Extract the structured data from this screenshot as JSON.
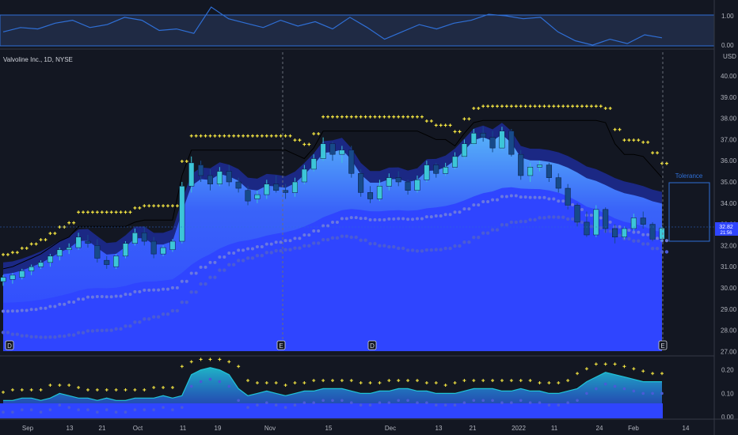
{
  "symbol_title": "Valvoline Inc., 1D, NYSE",
  "currency": "USD",
  "tolerance_label": "Tolerance",
  "last_price": "32.82",
  "countdown": "21:56",
  "colors": {
    "background": "#131722",
    "ribbon_fill": "#2f45ff",
    "band_dots": "#4a5bd6",
    "sar_dots": "#f5e642",
    "candle_up": "#3dc6d8",
    "candle_down": "#174a8a",
    "top_line": "#2f6fd6"
  },
  "x_ticks": [
    "Sep",
    "13",
    "21",
    "Oct",
    "11",
    "19",
    "Nov",
    "15",
    "Dec",
    "13",
    "21",
    "2022",
    "11",
    "24",
    "Feb",
    "14"
  ],
  "event_markers": [
    "D",
    "E",
    "D",
    "E"
  ],
  "chart_data": [
    {
      "type": "line",
      "panel": "top-oscillator",
      "yticks": [
        "1.00",
        "0.00"
      ],
      "ylim": [
        0,
        1
      ],
      "values": [
        0.45,
        0.6,
        0.55,
        0.75,
        0.85,
        0.6,
        0.7,
        0.95,
        0.85,
        0.5,
        0.55,
        0.4,
        1.3,
        0.9,
        0.75,
        0.6,
        0.85,
        0.65,
        0.8,
        0.55,
        0.95,
        0.6,
        0.2,
        0.45,
        0.7,
        0.55,
        0.75,
        0.85,
        1.05,
        1.0,
        0.9,
        0.95,
        0.45,
        0.15,
        0.0,
        0.2,
        0.05,
        0.35,
        0.25
      ]
    },
    {
      "type": "candlestick",
      "panel": "price",
      "yticks": [
        "40.00",
        "39.00",
        "38.00",
        "37.00",
        "36.00",
        "35.00",
        "34.00",
        "33.00",
        "32.00",
        "31.00",
        "30.00",
        "29.00",
        "28.00",
        "27.00"
      ],
      "ylim": [
        27,
        40.5
      ],
      "candles": [
        [
          30.3,
          30.6,
          30.1,
          30.5
        ],
        [
          30.4,
          30.7,
          30.2,
          30.6
        ],
        [
          30.5,
          30.9,
          30.4,
          30.8
        ],
        [
          30.8,
          31.1,
          30.6,
          31.0
        ],
        [
          31.0,
          31.3,
          30.9,
          31.2
        ],
        [
          31.2,
          31.6,
          31.0,
          31.5
        ],
        [
          31.5,
          31.9,
          31.3,
          31.8
        ],
        [
          31.8,
          32.1,
          31.6,
          31.9
        ],
        [
          31.9,
          32.6,
          31.8,
          32.4
        ],
        [
          32.2,
          32.5,
          31.9,
          32.1
        ],
        [
          32.0,
          32.3,
          31.2,
          31.4
        ],
        [
          31.3,
          31.5,
          30.9,
          31.1
        ],
        [
          31.0,
          31.6,
          30.9,
          31.5
        ],
        [
          31.5,
          32.2,
          31.4,
          32.1
        ],
        [
          32.1,
          32.8,
          32.0,
          32.6
        ],
        [
          32.6,
          32.9,
          32.0,
          32.2
        ],
        [
          32.2,
          32.4,
          31.4,
          31.6
        ],
        [
          31.6,
          32.0,
          31.5,
          31.9
        ],
        [
          31.8,
          32.3,
          31.7,
          32.2
        ],
        [
          32.2,
          35.0,
          32.1,
          34.8
        ],
        [
          34.8,
          36.2,
          34.5,
          35.9
        ],
        [
          35.8,
          36.0,
          35.0,
          35.3
        ],
        [
          35.3,
          35.6,
          34.6,
          34.9
        ],
        [
          34.9,
          35.7,
          34.8,
          35.5
        ],
        [
          35.5,
          35.8,
          34.8,
          35.0
        ],
        [
          35.0,
          35.2,
          34.5,
          34.7
        ],
        [
          34.6,
          34.8,
          33.9,
          34.1
        ],
        [
          34.2,
          34.6,
          34.0,
          34.4
        ],
        [
          34.4,
          35.1,
          34.2,
          34.9
        ],
        [
          34.9,
          35.3,
          34.5,
          34.6
        ],
        [
          34.6,
          34.9,
          34.2,
          34.5
        ],
        [
          34.5,
          35.2,
          34.3,
          35.0
        ],
        [
          35.0,
          35.8,
          34.9,
          35.6
        ],
        [
          35.6,
          36.3,
          35.5,
          36.1
        ],
        [
          36.1,
          37.1,
          36.0,
          36.8
        ],
        [
          36.8,
          36.9,
          36.0,
          36.3
        ],
        [
          36.3,
          36.7,
          35.9,
          36.5
        ],
        [
          36.5,
          36.7,
          35.2,
          35.4
        ],
        [
          35.4,
          35.6,
          34.3,
          34.5
        ],
        [
          34.5,
          34.8,
          34.0,
          34.2
        ],
        [
          34.2,
          35.1,
          34.1,
          34.8
        ],
        [
          34.8,
          35.4,
          34.6,
          35.2
        ],
        [
          35.2,
          35.5,
          34.8,
          35.0
        ],
        [
          35.0,
          35.1,
          34.4,
          34.6
        ],
        [
          34.6,
          35.3,
          34.5,
          35.1
        ],
        [
          35.1,
          36.0,
          35.0,
          35.8
        ],
        [
          35.8,
          35.9,
          35.2,
          35.4
        ],
        [
          35.4,
          35.9,
          35.3,
          35.7
        ],
        [
          35.7,
          36.4,
          35.6,
          36.2
        ],
        [
          36.2,
          37.0,
          36.1,
          36.8
        ],
        [
          36.8,
          37.5,
          36.7,
          37.3
        ],
        [
          37.3,
          37.6,
          36.9,
          37.1
        ],
        [
          37.1,
          37.4,
          36.4,
          36.6
        ],
        [
          36.6,
          37.6,
          36.5,
          37.4
        ],
        [
          37.4,
          37.5,
          36.2,
          36.3
        ],
        [
          36.3,
          36.5,
          35.1,
          35.3
        ],
        [
          35.3,
          35.9,
          35.0,
          35.7
        ],
        [
          35.7,
          36.0,
          35.5,
          35.8
        ],
        [
          35.8,
          35.9,
          35.0,
          35.2
        ],
        [
          35.2,
          35.4,
          34.5,
          34.7
        ],
        [
          34.7,
          34.9,
          33.7,
          33.9
        ],
        [
          33.9,
          34.0,
          32.9,
          33.1
        ],
        [
          33.1,
          33.6,
          32.4,
          32.5
        ],
        [
          32.5,
          33.9,
          32.4,
          33.7
        ],
        [
          33.7,
          33.8,
          32.6,
          32.8
        ],
        [
          32.8,
          33.0,
          32.1,
          32.4
        ],
        [
          32.4,
          32.9,
          32.3,
          32.8
        ],
        [
          32.8,
          33.5,
          32.7,
          33.3
        ],
        [
          33.3,
          33.6,
          32.8,
          33.0
        ],
        [
          33.0,
          33.1,
          32.2,
          32.3
        ],
        [
          32.3,
          32.9,
          32.2,
          32.82
        ]
      ]
    },
    {
      "type": "line",
      "panel": "bottom-oscillator",
      "yticks": [
        "0.20",
        "0.10",
        "0.00"
      ],
      "ylim": [
        0,
        0.27
      ],
      "values": [
        0.07,
        0.07,
        0.08,
        0.08,
        0.07,
        0.08,
        0.1,
        0.09,
        0.08,
        0.08,
        0.07,
        0.08,
        0.07,
        0.07,
        0.08,
        0.08,
        0.08,
        0.09,
        0.08,
        0.09,
        0.18,
        0.2,
        0.21,
        0.2,
        0.18,
        0.12,
        0.09,
        0.1,
        0.11,
        0.1,
        0.09,
        0.1,
        0.11,
        0.11,
        0.12,
        0.12,
        0.12,
        0.11,
        0.1,
        0.1,
        0.11,
        0.11,
        0.12,
        0.12,
        0.11,
        0.11,
        0.1,
        0.1,
        0.1,
        0.11,
        0.12,
        0.12,
        0.12,
        0.11,
        0.11,
        0.12,
        0.11,
        0.11,
        0.1,
        0.1,
        0.11,
        0.12,
        0.15,
        0.17,
        0.19,
        0.18,
        0.17,
        0.16,
        0.15,
        0.15,
        0.15
      ]
    }
  ]
}
